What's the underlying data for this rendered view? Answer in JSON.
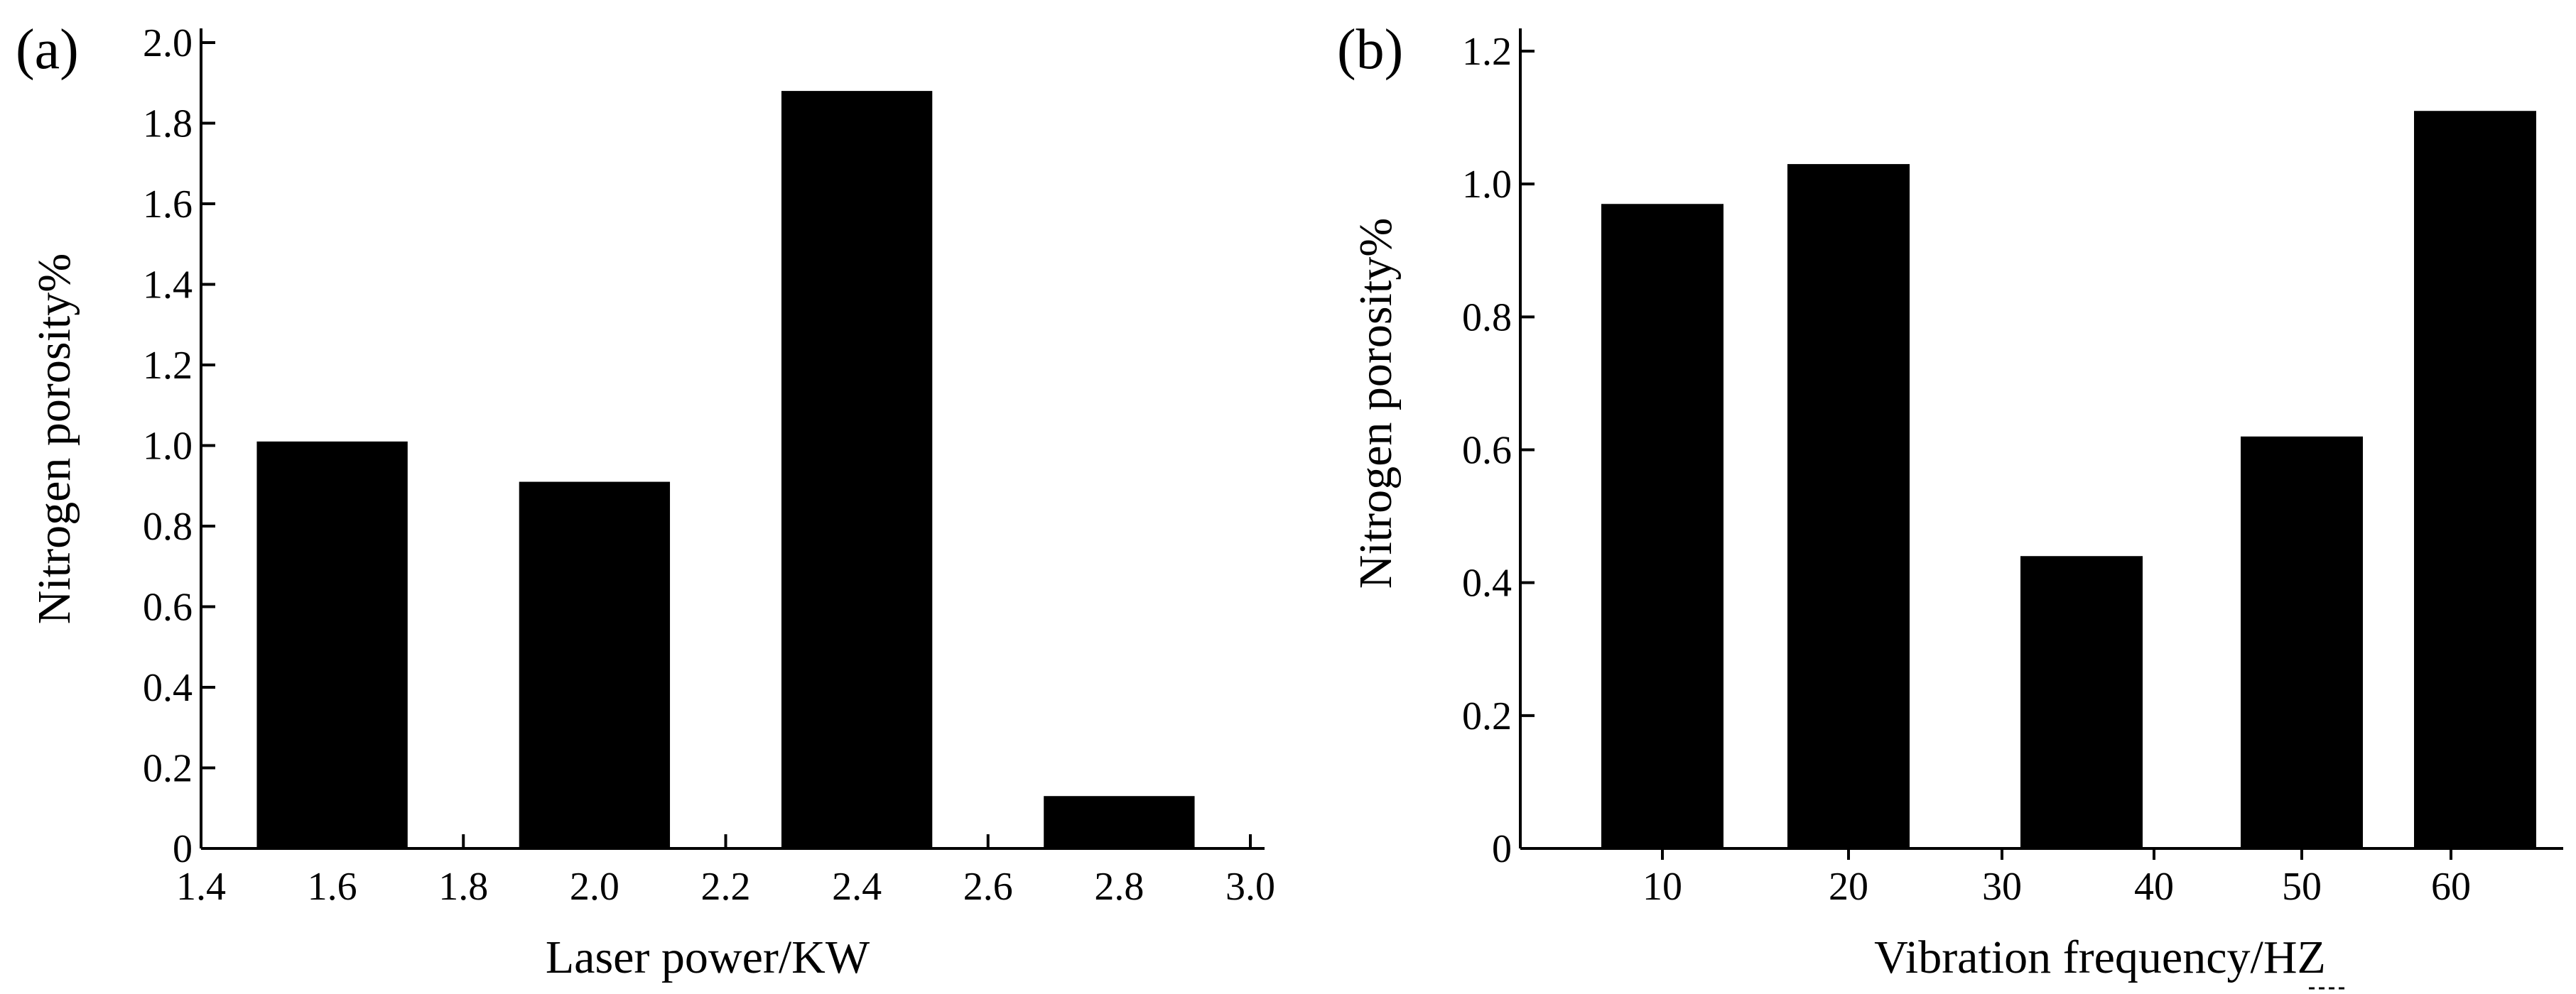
{
  "chart_data": [
    {
      "panel_label": "(a)",
      "type": "bar",
      "xlabel": "Laser power/KW",
      "ylabel": "Nitrogen porosity%",
      "xlim": [
        1.4,
        3.0
      ],
      "ylim": [
        0,
        2.0
      ],
      "xticks": [
        "1.4",
        "1.6",
        "1.8",
        "2.0",
        "2.2",
        "2.4",
        "2.6",
        "2.8",
        "3.0"
      ],
      "yticks": [
        "0",
        "0.2",
        "0.4",
        "0.6",
        "0.8",
        "1.0",
        "1.2",
        "1.4",
        "1.6",
        "1.8",
        "2.0"
      ],
      "categories": [
        1.6,
        2.0,
        2.4,
        2.8
      ],
      "values": [
        1.01,
        0.91,
        1.88,
        0.13
      ],
      "grid": false,
      "bar_color": "#000000"
    },
    {
      "panel_label": "(b)",
      "type": "bar",
      "xlabel": "Vibration frequency/HZ",
      "ylabel": "Nitrogen porosity%",
      "ylim": [
        0,
        1.2
      ],
      "xticks": [
        "10",
        "20",
        "30",
        "40",
        "50",
        "60"
      ],
      "yticks": [
        "0",
        "0.2",
        "0.4",
        "0.6",
        "0.8",
        "1.0",
        "1.2"
      ],
      "categories": [
        10,
        20,
        35,
        50,
        60
      ],
      "values": [
        0.97,
        1.03,
        0.44,
        0.62,
        1.11
      ],
      "grid": false,
      "bar_color": "#000000"
    }
  ]
}
